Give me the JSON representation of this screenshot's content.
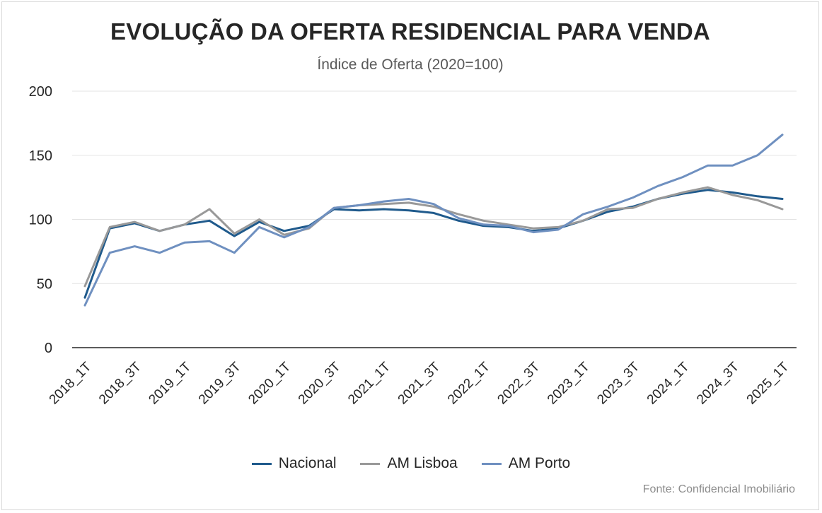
{
  "chart_data": {
    "type": "line",
    "title": "EVOLUÇÃO DA OFERTA RESIDENCIAL PARA VENDA",
    "subtitle": "Índice de Oferta (2020=100)",
    "source": "Fonte: Confidencial Imobiliário",
    "x": [
      "2018_1T",
      "2018_2T",
      "2018_3T",
      "2018_4T",
      "2019_1T",
      "2019_2T",
      "2019_3T",
      "2019_4T",
      "2020_1T",
      "2020_2T",
      "2020_3T",
      "2020_4T",
      "2021_1T",
      "2021_2T",
      "2021_3T",
      "2021_4T",
      "2022_1T",
      "2022_2T",
      "2022_3T",
      "2022_4T",
      "2023_1T",
      "2023_2T",
      "2023_3T",
      "2023_4T",
      "2024_1T",
      "2024_2T",
      "2024_3T",
      "2024_4T",
      "2025_1T"
    ],
    "tick_labels": [
      "2018_1T",
      "2018_3T",
      "2019_1T",
      "2019_3T",
      "2020_1T",
      "2020_3T",
      "2021_1T",
      "2021_3T",
      "2022_1T",
      "2022_3T",
      "2023_1T",
      "2023_3T",
      "2024_1T",
      "2024_3T",
      "2025_1T"
    ],
    "y_ticks": [
      0,
      50,
      100,
      150,
      200
    ],
    "ylim": [
      0,
      200
    ],
    "grid": true,
    "legend": "bottom",
    "series": [
      {
        "name": "Nacional",
        "color": "#1f5a8c",
        "values": [
          39,
          93,
          97,
          91,
          96,
          99,
          87,
          98,
          91,
          95,
          108,
          107,
          108,
          107,
          105,
          99,
          95,
          94,
          91,
          93,
          99,
          106,
          110,
          116,
          120,
          123,
          121,
          118,
          116
        ]
      },
      {
        "name": "AM Lisboa",
        "color": "#999999",
        "values": [
          48,
          94,
          98,
          91,
          96,
          108,
          89,
          100,
          88,
          93,
          109,
          111,
          112,
          113,
          110,
          104,
          99,
          96,
          93,
          94,
          99,
          108,
          109,
          116,
          121,
          125,
          119,
          115,
          108
        ]
      },
      {
        "name": "AM Porto",
        "color": "#6f90c0",
        "values": [
          33,
          74,
          79,
          74,
          82,
          83,
          74,
          94,
          86,
          94,
          109,
          111,
          114,
          116,
          112,
          101,
          96,
          95,
          90,
          92,
          104,
          110,
          117,
          126,
          133,
          142,
          142,
          150,
          166
        ]
      }
    ]
  }
}
